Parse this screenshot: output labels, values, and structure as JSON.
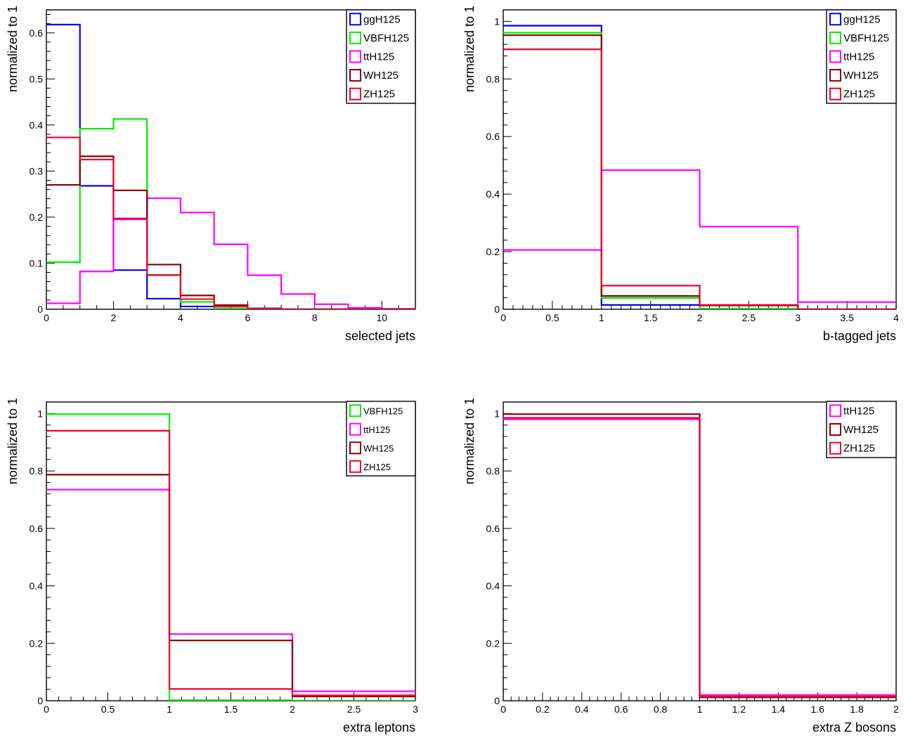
{
  "colors": {
    "ggH125": "#0000ee",
    "VBFH125": "#00ee00",
    "ttH125": "#ff00ff",
    "WH125": "#880000",
    "ZH125": "#ee0033"
  },
  "chart_data": [
    {
      "type": "histogram",
      "xlabel": "selected jets",
      "ylabel": "normalized to 1",
      "xlim": [
        0,
        11
      ],
      "ylim": [
        0,
        0.65
      ],
      "xticks": [
        0,
        2,
        4,
        6,
        8,
        10
      ],
      "yticks": [
        0,
        0.1,
        0.2,
        0.3,
        0.4,
        0.5,
        0.6
      ],
      "bin_edges": [
        0,
        1,
        2,
        3,
        4,
        5,
        6,
        7,
        8,
        9,
        10,
        11
      ],
      "legend_position": "top-right",
      "series": [
        {
          "name": "ggH125",
          "values": [
            0.618,
            0.268,
            0.085,
            0.023,
            0.006,
            0.001,
            0,
            0,
            0,
            0,
            0
          ]
        },
        {
          "name": "VBFH125",
          "values": [
            0.102,
            0.392,
            0.413,
            0.075,
            0.016,
            0.002,
            0,
            0,
            0,
            0,
            0
          ]
        },
        {
          "name": "ttH125",
          "values": [
            0.013,
            0.082,
            0.195,
            0.241,
            0.21,
            0.141,
            0.074,
            0.033,
            0.011,
            0.003,
            0.001
          ]
        },
        {
          "name": "WH125",
          "values": [
            0.27,
            0.332,
            0.258,
            0.097,
            0.03,
            0.009,
            0.002,
            0,
            0,
            0,
            0
          ]
        },
        {
          "name": "ZH125",
          "values": [
            0.373,
            0.325,
            0.197,
            0.074,
            0.022,
            0.006,
            0.002,
            0,
            0,
            0,
            0
          ]
        }
      ]
    },
    {
      "type": "histogram",
      "xlabel": "b-tagged jets",
      "ylabel": "normalized to 1",
      "xlim": [
        0,
        4
      ],
      "ylim": [
        0,
        1.04
      ],
      "xticks": [
        0,
        0.5,
        1,
        1.5,
        2,
        2.5,
        3,
        3.5,
        4
      ],
      "yticks": [
        0,
        0.2,
        0.4,
        0.6,
        0.8,
        1
      ],
      "bin_edges": [
        0,
        1,
        2,
        3,
        4
      ],
      "legend_position": "top-right",
      "series": [
        {
          "name": "ggH125",
          "values": [
            0.985,
            0.015,
            0.002,
            0
          ]
        },
        {
          "name": "VBFH125",
          "values": [
            0.96,
            0.039,
            0.002,
            0
          ]
        },
        {
          "name": "ttH125",
          "values": [
            0.206,
            0.483,
            0.287,
            0.025
          ]
        },
        {
          "name": "WH125",
          "values": [
            0.952,
            0.046,
            0.013,
            0
          ]
        },
        {
          "name": "ZH125",
          "values": [
            0.903,
            0.082,
            0.015,
            0
          ]
        }
      ]
    },
    {
      "type": "histogram",
      "xlabel": "extra leptons",
      "ylabel": "normalized to 1",
      "xlim": [
        0,
        3
      ],
      "ylim": [
        0,
        1.04
      ],
      "xticks": [
        0,
        0.5,
        1,
        1.5,
        2,
        2.5,
        3
      ],
      "yticks": [
        0,
        0.2,
        0.4,
        0.6,
        0.8,
        1
      ],
      "bin_edges": [
        0,
        1,
        2,
        3
      ],
      "legend_position": "top-right",
      "series": [
        {
          "name": "VBFH125",
          "values": [
            0.998,
            0.002,
            0
          ]
        },
        {
          "name": "ttH125",
          "values": [
            0.735,
            0.232,
            0.033
          ]
        },
        {
          "name": "WH125",
          "values": [
            0.787,
            0.21,
            0.015
          ]
        },
        {
          "name": "ZH125",
          "values": [
            0.94,
            0.041,
            0.019
          ]
        }
      ]
    },
    {
      "type": "histogram",
      "xlabel": "extra Z bosons",
      "ylabel": "normalized to 1",
      "xlim": [
        0,
        2
      ],
      "ylim": [
        0,
        1.04
      ],
      "xticks": [
        0,
        0.2,
        0.4,
        0.6,
        0.8,
        1,
        1.2,
        1.4,
        1.6,
        1.8,
        2
      ],
      "yticks": [
        0,
        0.2,
        0.4,
        0.6,
        0.8,
        1
      ],
      "bin_edges": [
        0,
        1,
        2
      ],
      "legend_position": "top-right",
      "series": [
        {
          "name": "ttH125",
          "values": [
            0.98,
            0.02
          ]
        },
        {
          "name": "WH125",
          "values": [
            0.998,
            0.012
          ]
        },
        {
          "name": "ZH125",
          "values": [
            0.985,
            0.015
          ]
        }
      ]
    }
  ]
}
